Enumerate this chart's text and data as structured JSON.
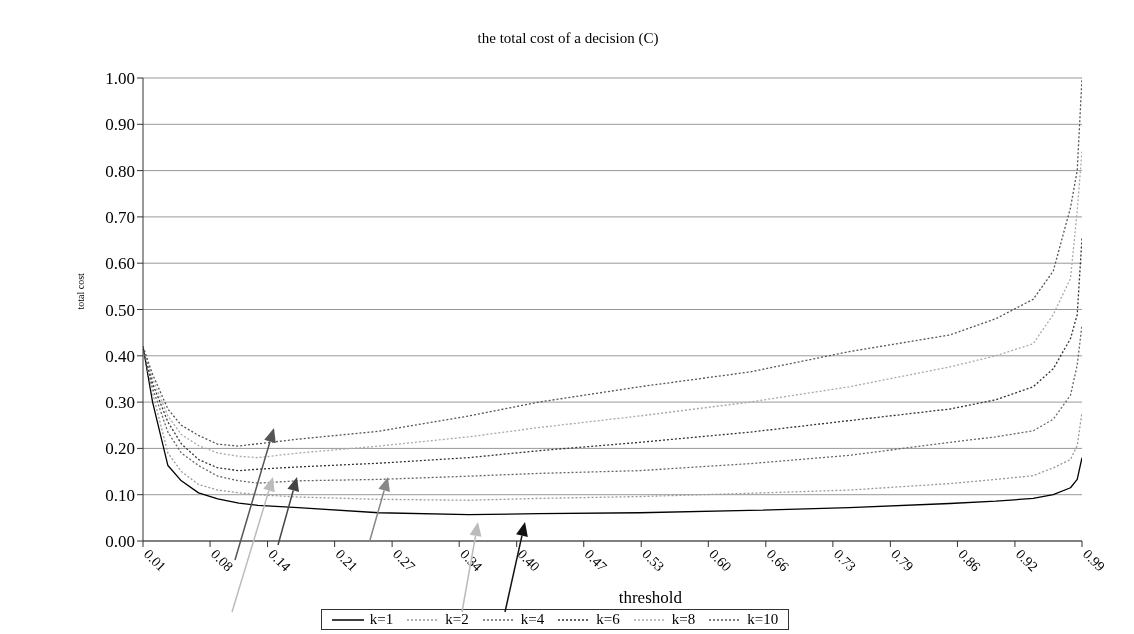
{
  "chart_data": {
    "type": "line",
    "title": "the total cost of a decision (C)",
    "xlabel": "threshold",
    "ylabel": "total cost",
    "x": [
      0.01,
      0.02,
      0.036,
      0.05,
      0.068,
      0.088,
      0.11,
      0.13,
      0.172,
      0.256,
      0.35,
      0.423,
      0.528,
      0.643,
      0.747,
      0.852,
      0.9,
      0.939,
      0.96,
      0.978,
      0.985,
      0.99
    ],
    "series": [
      {
        "name": "k=1",
        "color": "#000000",
        "line_style": "solid",
        "values": [
          0.42,
          0.3,
          0.163,
          0.13,
          0.104,
          0.091,
          0.082,
          0.077,
          0.072,
          0.061,
          0.057,
          0.059,
          0.061,
          0.066,
          0.072,
          0.081,
          0.086,
          0.092,
          0.1,
          0.115,
          0.133,
          0.18
        ]
      },
      {
        "name": "k=2",
        "color": "#999999",
        "line_style": "dotted",
        "values": [
          0.42,
          0.32,
          0.19,
          0.15,
          0.122,
          0.11,
          0.104,
          0.1,
          0.095,
          0.09,
          0.088,
          0.092,
          0.096,
          0.103,
          0.11,
          0.124,
          0.133,
          0.141,
          0.158,
          0.176,
          0.206,
          0.278
        ]
      },
      {
        "name": "k=4",
        "color": "#666666",
        "line_style": "dotted",
        "values": [
          0.42,
          0.33,
          0.235,
          0.19,
          0.163,
          0.14,
          0.13,
          0.125,
          0.13,
          0.133,
          0.14,
          0.146,
          0.152,
          0.167,
          0.185,
          0.213,
          0.225,
          0.238,
          0.263,
          0.315,
          0.38,
          0.467
        ]
      },
      {
        "name": "k=6",
        "color": "#333333",
        "line_style": "dotted",
        "values": [
          0.42,
          0.34,
          0.257,
          0.21,
          0.176,
          0.158,
          0.152,
          0.155,
          0.16,
          0.168,
          0.18,
          0.195,
          0.213,
          0.235,
          0.26,
          0.285,
          0.305,
          0.333,
          0.372,
          0.437,
          0.489,
          0.655
        ]
      },
      {
        "name": "k=8",
        "color": "#aaaaaa",
        "line_style": "dotted",
        "values": [
          0.42,
          0.35,
          0.27,
          0.23,
          0.206,
          0.19,
          0.183,
          0.18,
          0.19,
          0.205,
          0.225,
          0.245,
          0.27,
          0.3,
          0.333,
          0.376,
          0.4,
          0.426,
          0.489,
          0.567,
          0.713,
          0.843
        ]
      },
      {
        "name": "k=10",
        "color": "#555555",
        "line_style": "dotted",
        "values": [
          0.42,
          0.36,
          0.285,
          0.25,
          0.228,
          0.209,
          0.205,
          0.21,
          0.22,
          0.237,
          0.27,
          0.3,
          0.333,
          0.365,
          0.409,
          0.445,
          0.48,
          0.522,
          0.583,
          0.72,
          0.8,
          1.0
        ]
      }
    ],
    "xlim": [
      0.01,
      0.99
    ],
    "xticks": [
      0.01,
      0.08,
      0.14,
      0.21,
      0.27,
      0.34,
      {
        "value": 0.4,
        "label": "0.40"
      },
      0.47,
      0.53,
      {
        "value": 0.6,
        "label": "0.60"
      },
      0.66,
      0.73,
      0.79,
      0.86,
      0.92,
      0.99
    ],
    "ylim": [
      0,
      1
    ],
    "yticks": [
      {
        "value": 0,
        "label": "0.00"
      },
      {
        "value": 0.1,
        "label": "0.10"
      },
      {
        "value": 0.2,
        "label": "0.20"
      },
      {
        "value": 0.3,
        "label": "0.30"
      },
      {
        "value": 0.4,
        "label": "0.40"
      },
      {
        "value": 0.5,
        "label": "0.50"
      },
      {
        "value": 0.6,
        "label": "0.60"
      },
      {
        "value": 0.7,
        "label": "0.70"
      },
      {
        "value": 0.8,
        "label": "0.80"
      },
      {
        "value": 0.9,
        "label": "0.90"
      },
      {
        "value": 1,
        "label": "1.00"
      }
    ],
    "grid": "y",
    "legend": "bottom",
    "marker": "none"
  }
}
